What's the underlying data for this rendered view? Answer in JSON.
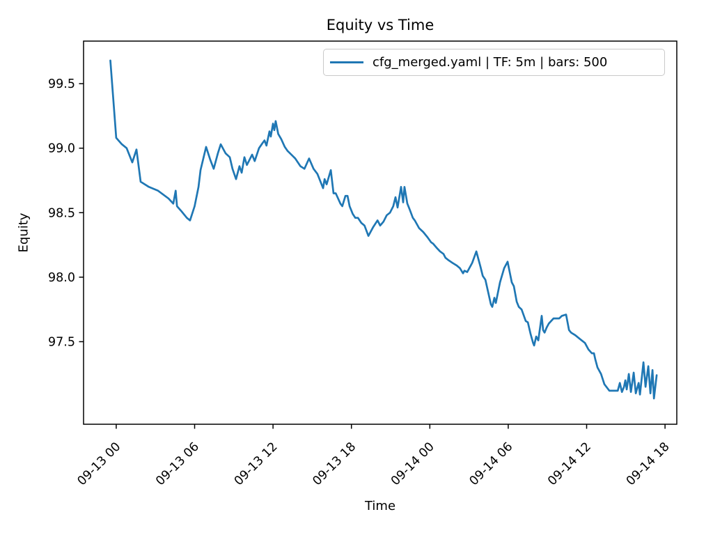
{
  "chart_data": {
    "type": "line",
    "title": "Equity vs Time",
    "xlabel": "Time",
    "ylabel": "Equity",
    "grid": false,
    "legend_position": "upper right",
    "legend": [
      {
        "label": "cfg_merged.yaml | TF: 5m | bars: 500",
        "color": "#1f77b4"
      }
    ],
    "x_unit": "hours since 09-13 00:00",
    "xlim": [
      -2.5,
      42.9
    ],
    "ylim": [
      96.86,
      99.83
    ],
    "y_ticks": [
      97.5,
      98.0,
      98.5,
      99.0,
      99.5
    ],
    "x_ticks": [
      {
        "hours": 0,
        "label": "09-13 00"
      },
      {
        "hours": 6,
        "label": "09-13 06"
      },
      {
        "hours": 12,
        "label": "09-13 12"
      },
      {
        "hours": 18,
        "label": "09-13 18"
      },
      {
        "hours": 24,
        "label": "09-14 00"
      },
      {
        "hours": 30,
        "label": "09-14 06"
      },
      {
        "hours": 36,
        "label": "09-14 12"
      },
      {
        "hours": 42,
        "label": "09-14 18"
      }
    ],
    "series": [
      {
        "name": "cfg_merged.yaml | TF: 5m | bars: 500",
        "color": "#1f77b4",
        "points": [
          [
            -0.45,
            99.68
          ],
          [
            0,
            99.08
          ],
          [
            0.43,
            99.03
          ],
          [
            0.8,
            99.0
          ],
          [
            1.23,
            98.89
          ],
          [
            1.55,
            98.99
          ],
          [
            1.87,
            98.74
          ],
          [
            2.5,
            98.7
          ],
          [
            3.2,
            98.67
          ],
          [
            4.0,
            98.61
          ],
          [
            4.37,
            98.57
          ],
          [
            4.55,
            98.67
          ],
          [
            4.65,
            98.55
          ],
          [
            5.0,
            98.51
          ],
          [
            5.4,
            98.46
          ],
          [
            5.65,
            98.44
          ],
          [
            6.0,
            98.55
          ],
          [
            6.3,
            98.7
          ],
          [
            6.45,
            98.83
          ],
          [
            6.88,
            99.01
          ],
          [
            7.2,
            98.91
          ],
          [
            7.46,
            98.84
          ],
          [
            7.78,
            98.96
          ],
          [
            8.0,
            99.03
          ],
          [
            8.37,
            98.96
          ],
          [
            8.69,
            98.93
          ],
          [
            8.9,
            98.84
          ],
          [
            9.17,
            98.76
          ],
          [
            9.43,
            98.86
          ],
          [
            9.6,
            98.81
          ],
          [
            9.81,
            98.93
          ],
          [
            10.0,
            98.87
          ],
          [
            10.4,
            98.95
          ],
          [
            10.6,
            98.9
          ],
          [
            10.93,
            99.0
          ],
          [
            11.2,
            99.04
          ],
          [
            11.35,
            99.06
          ],
          [
            11.5,
            99.02
          ],
          [
            11.73,
            99.13
          ],
          [
            11.83,
            99.09
          ],
          [
            12.0,
            99.19
          ],
          [
            12.1,
            99.14
          ],
          [
            12.2,
            99.21
          ],
          [
            12.4,
            99.11
          ],
          [
            12.63,
            99.07
          ],
          [
            12.9,
            99.01
          ],
          [
            13.1,
            98.98
          ],
          [
            13.5,
            98.94
          ],
          [
            13.7,
            98.92
          ],
          [
            14.1,
            98.86
          ],
          [
            14.4,
            98.84
          ],
          [
            14.76,
            98.92
          ],
          [
            15.1,
            98.84
          ],
          [
            15.4,
            98.8
          ],
          [
            15.83,
            98.69
          ],
          [
            15.95,
            98.76
          ],
          [
            16.1,
            98.72
          ],
          [
            16.42,
            98.83
          ],
          [
            16.63,
            98.65
          ],
          [
            16.8,
            98.65
          ],
          [
            17.16,
            98.57
          ],
          [
            17.3,
            98.55
          ],
          [
            17.54,
            98.63
          ],
          [
            17.7,
            98.63
          ],
          [
            17.86,
            98.55
          ],
          [
            18.1,
            98.49
          ],
          [
            18.3,
            98.46
          ],
          [
            18.5,
            98.46
          ],
          [
            18.76,
            98.42
          ],
          [
            19.0,
            98.4
          ],
          [
            19.3,
            98.32
          ],
          [
            19.67,
            98.39
          ],
          [
            20.0,
            98.44
          ],
          [
            20.2,
            98.4
          ],
          [
            20.45,
            98.43
          ],
          [
            20.7,
            98.48
          ],
          [
            20.95,
            98.5
          ],
          [
            21.2,
            98.55
          ],
          [
            21.37,
            98.62
          ],
          [
            21.53,
            98.54
          ],
          [
            21.8,
            98.7
          ],
          [
            21.96,
            98.58
          ],
          [
            22.06,
            98.7
          ],
          [
            22.28,
            98.57
          ],
          [
            22.44,
            98.53
          ],
          [
            22.7,
            98.46
          ],
          [
            22.85,
            98.44
          ],
          [
            23.18,
            98.38
          ],
          [
            23.5,
            98.35
          ],
          [
            23.82,
            98.31
          ],
          [
            24.1,
            98.27
          ],
          [
            24.25,
            98.26
          ],
          [
            24.5,
            98.23
          ],
          [
            24.78,
            98.2
          ],
          [
            25.05,
            98.18
          ],
          [
            25.2,
            98.15
          ],
          [
            25.45,
            98.13
          ],
          [
            25.74,
            98.11
          ],
          [
            26.06,
            98.09
          ],
          [
            26.3,
            98.07
          ],
          [
            26.54,
            98.03
          ],
          [
            26.65,
            98.05
          ],
          [
            26.86,
            98.04
          ],
          [
            27.24,
            98.11
          ],
          [
            27.56,
            98.2
          ],
          [
            27.88,
            98.08
          ],
          [
            28.05,
            98.01
          ],
          [
            28.25,
            97.98
          ],
          [
            28.67,
            97.79
          ],
          [
            28.78,
            97.77
          ],
          [
            28.94,
            97.84
          ],
          [
            29.05,
            97.8
          ],
          [
            29.37,
            97.96
          ],
          [
            29.69,
            98.07
          ],
          [
            29.95,
            98.12
          ],
          [
            30.11,
            98.04
          ],
          [
            30.27,
            97.96
          ],
          [
            30.43,
            97.93
          ],
          [
            30.65,
            97.81
          ],
          [
            30.81,
            97.77
          ],
          [
            31.02,
            97.75
          ],
          [
            31.34,
            97.66
          ],
          [
            31.5,
            97.65
          ],
          [
            31.71,
            97.56
          ],
          [
            31.9,
            97.49
          ],
          [
            31.98,
            97.47
          ],
          [
            32.14,
            97.54
          ],
          [
            32.3,
            97.51
          ],
          [
            32.56,
            97.7
          ],
          [
            32.67,
            97.59
          ],
          [
            32.78,
            97.57
          ],
          [
            32.94,
            97.61
          ],
          [
            33.1,
            97.64
          ],
          [
            33.47,
            97.68
          ],
          [
            33.9,
            97.68
          ],
          [
            34.11,
            97.7
          ],
          [
            34.43,
            97.71
          ],
          [
            34.65,
            97.59
          ],
          [
            34.81,
            97.57
          ],
          [
            35.13,
            97.55
          ],
          [
            35.5,
            97.52
          ],
          [
            35.87,
            97.49
          ],
          [
            36.14,
            97.44
          ],
          [
            36.4,
            97.41
          ],
          [
            36.56,
            97.41
          ],
          [
            36.67,
            97.36
          ],
          [
            36.83,
            97.3
          ],
          [
            37.1,
            97.25
          ],
          [
            37.36,
            97.17
          ],
          [
            37.74,
            97.12
          ],
          [
            38.0,
            97.12
          ],
          [
            38.38,
            97.12
          ],
          [
            38.54,
            97.18
          ],
          [
            38.7,
            97.11
          ],
          [
            38.86,
            97.15
          ],
          [
            38.96,
            97.2
          ],
          [
            39.07,
            97.13
          ],
          [
            39.23,
            97.25
          ],
          [
            39.39,
            97.11
          ],
          [
            39.6,
            97.26
          ],
          [
            39.76,
            97.1
          ],
          [
            39.98,
            97.18
          ],
          [
            40.08,
            97.09
          ],
          [
            40.35,
            97.34
          ],
          [
            40.51,
            97.15
          ],
          [
            40.72,
            97.31
          ],
          [
            40.88,
            97.1
          ],
          [
            41.04,
            97.28
          ],
          [
            41.15,
            97.06
          ],
          [
            41.36,
            97.24
          ]
        ]
      }
    ]
  }
}
